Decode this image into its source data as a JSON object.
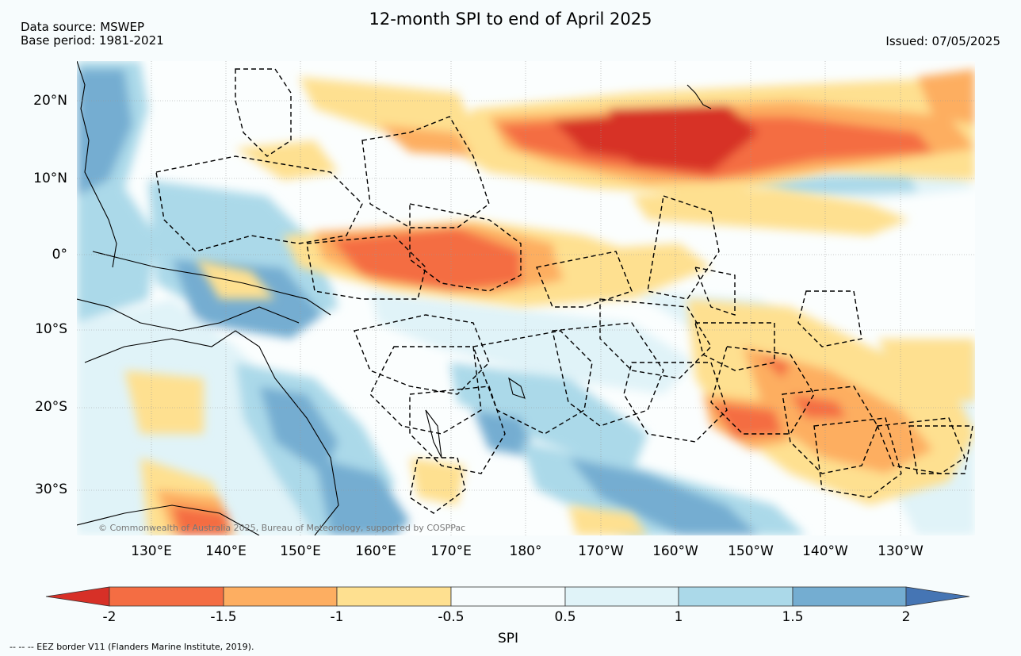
{
  "title": "12-month SPI to end of April 2025",
  "data_source": "Data source: MSWEP",
  "base_period": "Base period: 1981-2021",
  "issued": "Issued: 07/05/2025",
  "map": {
    "lat_labels": [
      "20°N",
      "10°N",
      "0°",
      "10°S",
      "20°S",
      "30°S"
    ],
    "lon_labels": [
      "130°E",
      "140°E",
      "150°E",
      "160°E",
      "170°E",
      "180°",
      "170°W",
      "160°W",
      "150°W",
      "140°W",
      "130°W"
    ],
    "copyright": "© Commonwealth of Australia 2025, Bureau of Meteorology, supported by COSPPac",
    "dry_color": "#d73027",
    "wet_color": "#4575b4"
  },
  "colorbar": {
    "label": "SPI",
    "ticks": [
      "-2",
      "-1.5",
      "-1",
      "-0.5",
      "0.5",
      "1",
      "1.5",
      "2"
    ],
    "colors": [
      "#d73027",
      "#f46d43",
      "#fdae61",
      "#fee090",
      "#f7fcfd",
      "#e0f3f8",
      "#abd9e9",
      "#74add1",
      "#4575b4"
    ]
  },
  "footnote": "-- -- -- EEZ border V11 (Flanders Marine Institute, 2019)."
}
